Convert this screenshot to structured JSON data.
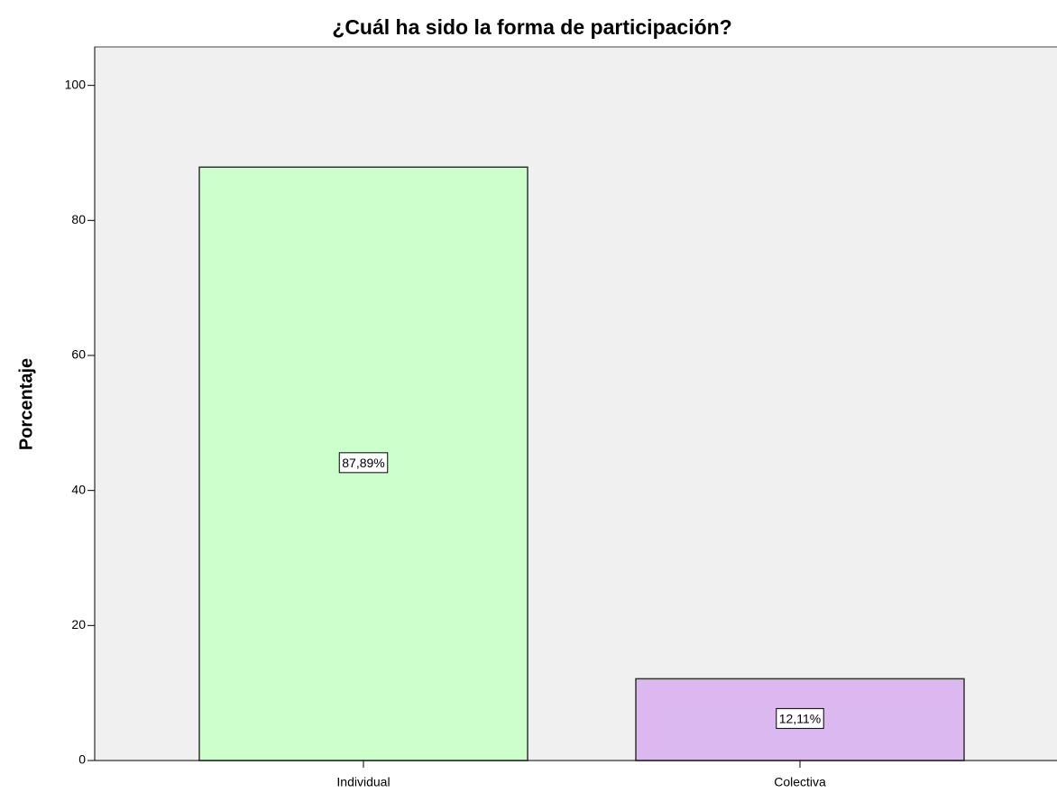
{
  "chart_data": {
    "type": "bar",
    "title": "¿Cuál ha sido la forma de participación?",
    "y_label": "Porcentaje",
    "categories": [
      "Individual",
      "Colectiva"
    ],
    "values": [
      87.89,
      12.11
    ],
    "value_labels": [
      "87,89%",
      "12,11%"
    ],
    "colors": [
      "#ccffcc",
      "#dcb8f0"
    ],
    "ylim": [
      0,
      105.7
    ],
    "yticks": [
      0,
      20,
      40,
      60,
      80,
      100
    ],
    "grid": false
  }
}
